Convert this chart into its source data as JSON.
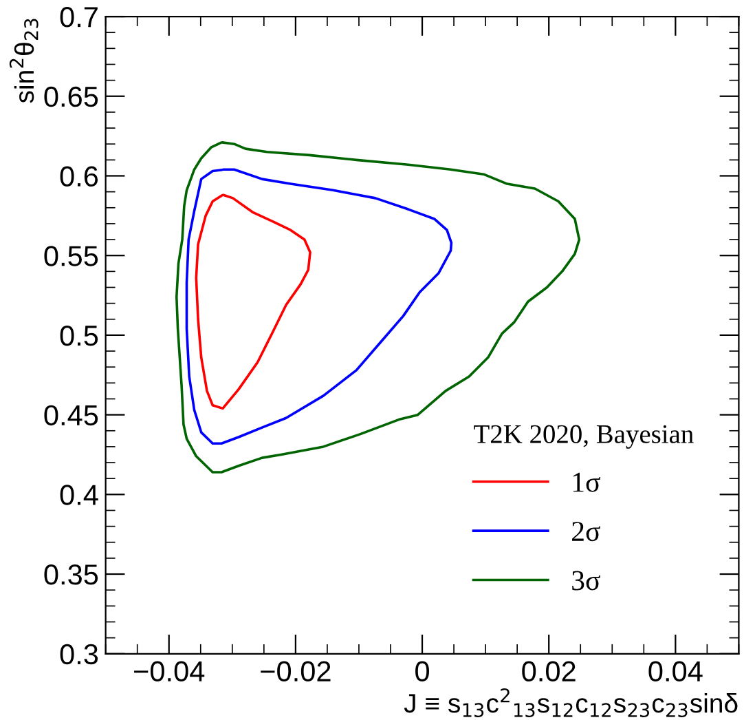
{
  "chart_data": {
    "type": "line",
    "xlabel": "J ≡ s$_{13}$c$^{2}$$_{13}$s$_{12}$c$_{12}$s$_{23}$c$_{23}$sinδ",
    "ylabel": "sin$^{2}$θ$_{23}$",
    "legend_title": "T2K 2020, Bayesian",
    "legend": "bottom right",
    "grid": false,
    "marker": "none",
    "line_style": "solid",
    "xlim": [
      -0.05,
      0.05
    ],
    "xticks": [
      {
        "value": -0.04,
        "label": "−0.04"
      },
      {
        "value": -0.02,
        "label": "−0.02"
      },
      0,
      0.02,
      0.04
    ],
    "ylim": [
      0.3,
      0.7
    ],
    "yticks": [
      0.3,
      0.35,
      0.4,
      0.45,
      0.5,
      0.55,
      0.6,
      0.65,
      0.7
    ],
    "series": [
      {
        "name": "1σ",
        "color": "#ff0000",
        "x": [
          -0.0314,
          -0.0299,
          -0.0267,
          -0.0234,
          -0.0208,
          -0.0186,
          -0.0177,
          -0.018,
          -0.0192,
          -0.0215,
          -0.0236,
          -0.026,
          -0.029,
          -0.0315,
          -0.0331,
          -0.034,
          -0.0349,
          -0.0354,
          -0.0357,
          -0.0354,
          -0.0342,
          -0.0331,
          -0.0316
        ],
        "values": [
          0.588,
          0.586,
          0.577,
          0.571,
          0.566,
          0.56,
          0.552,
          0.541,
          0.532,
          0.519,
          0.502,
          0.483,
          0.466,
          0.454,
          0.456,
          0.465,
          0.486,
          0.51,
          0.536,
          0.557,
          0.575,
          0.584,
          0.5878
        ]
      },
      {
        "name": "2σ",
        "color": "#0000ff",
        "x": [
          -0.0314,
          -0.0297,
          -0.0253,
          -0.0208,
          -0.0141,
          -0.0074,
          -0.0022,
          0.0019,
          0.0039,
          0.0046,
          0.0045,
          0.0026,
          -0.0004,
          -0.003,
          -0.0067,
          -0.0104,
          -0.0156,
          -0.0215,
          -0.0253,
          -0.029,
          -0.0317,
          -0.0331,
          -0.0349,
          -0.036,
          -0.0368,
          -0.0372,
          -0.0372,
          -0.0369,
          -0.036,
          -0.0349,
          -0.0331,
          -0.0316
        ],
        "values": [
          0.604,
          0.604,
          0.598,
          0.595,
          0.591,
          0.586,
          0.579,
          0.573,
          0.566,
          0.558,
          0.553,
          0.539,
          0.527,
          0.512,
          0.495,
          0.478,
          0.462,
          0.448,
          0.442,
          0.436,
          0.432,
          0.432,
          0.439,
          0.453,
          0.474,
          0.504,
          0.533,
          0.56,
          0.578,
          0.598,
          0.603,
          0.6038
        ]
      },
      {
        "name": "3σ",
        "color": "#006400",
        "x": [
          -0.0316,
          -0.0297,
          -0.0279,
          -0.0245,
          -0.0178,
          -0.0104,
          -0.0022,
          0.0045,
          0.0097,
          0.0134,
          0.0178,
          0.0215,
          0.0241,
          0.0248,
          0.0241,
          0.0221,
          0.0197,
          0.0167,
          0.0145,
          0.0126,
          0.0104,
          0.0074,
          0.0037,
          -0.0007,
          -0.0037,
          -0.0097,
          -0.0156,
          -0.0223,
          -0.0253,
          -0.029,
          -0.0317,
          -0.0331,
          -0.0357,
          -0.0372,
          -0.0377,
          -0.038,
          -0.0386,
          -0.0388,
          -0.0385,
          -0.0379,
          -0.0376,
          -0.0372,
          -0.036,
          -0.0349,
          -0.0333,
          -0.0318
        ],
        "values": [
          0.621,
          0.62,
          0.617,
          0.615,
          0.613,
          0.61,
          0.607,
          0.604,
          0.601,
          0.595,
          0.592,
          0.584,
          0.573,
          0.56,
          0.551,
          0.54,
          0.53,
          0.521,
          0.508,
          0.501,
          0.486,
          0.474,
          0.465,
          0.45,
          0.447,
          0.438,
          0.43,
          0.425,
          0.423,
          0.418,
          0.414,
          0.414,
          0.424,
          0.435,
          0.444,
          0.468,
          0.504,
          0.524,
          0.545,
          0.56,
          0.581,
          0.591,
          0.604,
          0.611,
          0.618,
          0.6208
        ]
      }
    ]
  }
}
